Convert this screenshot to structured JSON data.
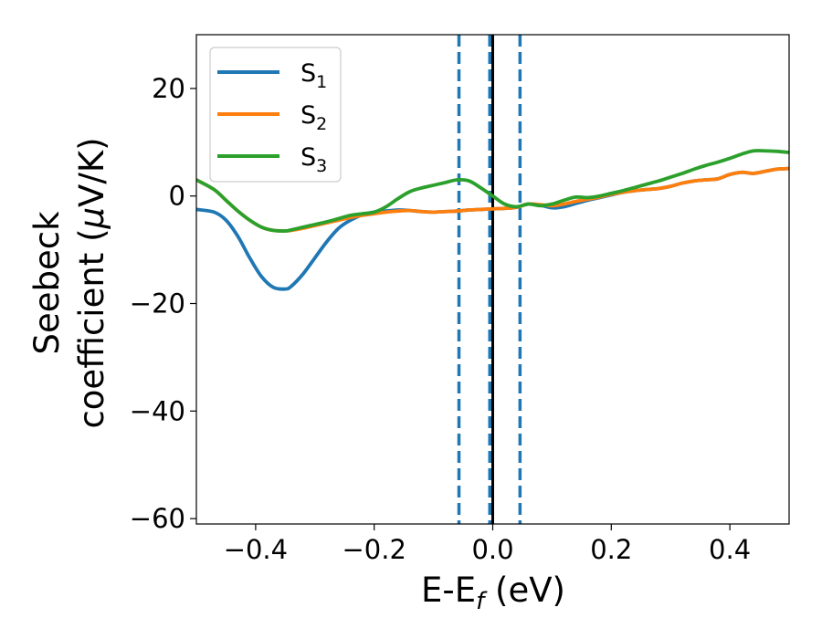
{
  "chart_data": {
    "type": "line",
    "title": "",
    "xlabel": {
      "base": "E-E",
      "sub": "f",
      "suffix": " (eV)"
    },
    "ylabel": {
      "line1": "Seebeck",
      "line2_prefix": "coefficient  (",
      "line2_mu": "μ",
      "line2_suffix": "V/K)"
    },
    "xlim": [
      -0.5,
      0.5
    ],
    "ylim": [
      -61,
      30
    ],
    "xticks": [
      -0.4,
      -0.2,
      0.0,
      0.2,
      0.4
    ],
    "xtick_labels": [
      "−0.4",
      "−0.2",
      "0.0",
      "0.2",
      "0.4"
    ],
    "yticks": [
      -60,
      -40,
      -20,
      0,
      20
    ],
    "ytick_labels": [
      "−60",
      "−40",
      "−20",
      "0",
      "20"
    ],
    "legend_position": "top-left",
    "series": [
      {
        "name": "S",
        "sub": "1",
        "color": "#1f77b4",
        "x": [
          -0.5,
          -0.47,
          -0.45,
          -0.43,
          -0.41,
          -0.39,
          -0.37,
          -0.35,
          -0.34,
          -0.32,
          -0.3,
          -0.28,
          -0.26,
          -0.24,
          -0.22,
          -0.2,
          -0.18,
          -0.16,
          -0.14,
          -0.12,
          -0.1,
          -0.08,
          -0.06,
          -0.04,
          -0.02,
          0.0,
          0.02,
          0.04,
          0.06,
          0.08,
          0.1,
          0.12,
          0.14,
          0.16,
          0.18,
          0.2,
          0.22,
          0.24,
          0.26,
          0.28,
          0.3,
          0.32,
          0.34,
          0.36,
          0.38,
          0.4,
          0.42,
          0.44,
          0.46,
          0.48,
          0.5
        ],
        "y": [
          -2.5,
          -3.0,
          -4.5,
          -7.5,
          -11.5,
          -15.0,
          -17.0,
          -17.3,
          -16.8,
          -14.5,
          -11.5,
          -8.5,
          -6.0,
          -4.5,
          -3.5,
          -3.0,
          -2.8,
          -2.6,
          -2.7,
          -2.9,
          -3.0,
          -2.9,
          -2.8,
          -2.6,
          -2.5,
          -2.4,
          -2.3,
          -2.1,
          -1.5,
          -1.7,
          -2.2,
          -2.0,
          -1.4,
          -0.8,
          -0.3,
          0.2,
          0.7,
          1.0,
          1.2,
          1.4,
          1.8,
          2.4,
          2.8,
          3.0,
          3.2,
          4.0,
          4.4,
          4.2,
          4.6,
          5.0,
          5.1
        ]
      },
      {
        "name": "S",
        "sub": "2",
        "color": "#ff7f0e",
        "x": [
          -0.5,
          -0.47,
          -0.45,
          -0.43,
          -0.41,
          -0.39,
          -0.37,
          -0.35,
          -0.34,
          -0.32,
          -0.3,
          -0.28,
          -0.26,
          -0.24,
          -0.22,
          -0.2,
          -0.18,
          -0.16,
          -0.14,
          -0.12,
          -0.1,
          -0.08,
          -0.06,
          -0.04,
          -0.02,
          0.0,
          0.02,
          0.04,
          0.06,
          0.08,
          0.1,
          0.12,
          0.14,
          0.16,
          0.18,
          0.2,
          0.22,
          0.24,
          0.26,
          0.28,
          0.3,
          0.32,
          0.34,
          0.36,
          0.38,
          0.4,
          0.42,
          0.44,
          0.46,
          0.48,
          0.5
        ],
        "y": [
          3.0,
          1.2,
          -0.8,
          -2.8,
          -4.5,
          -5.8,
          -6.4,
          -6.5,
          -6.4,
          -6.0,
          -5.5,
          -5.0,
          -4.5,
          -4.0,
          -3.6,
          -3.3,
          -3.0,
          -2.8,
          -2.7,
          -2.9,
          -3.0,
          -2.9,
          -2.8,
          -2.6,
          -2.5,
          -2.4,
          -2.3,
          -2.1,
          -1.5,
          -1.6,
          -1.8,
          -1.5,
          -1.0,
          -0.6,
          -0.2,
          0.3,
          0.7,
          1.0,
          1.2,
          1.4,
          1.8,
          2.4,
          2.8,
          3.0,
          3.2,
          4.0,
          4.4,
          4.2,
          4.6,
          5.0,
          5.1
        ]
      },
      {
        "name": "S",
        "sub": "3",
        "color": "#2ca02c",
        "x": [
          -0.5,
          -0.47,
          -0.45,
          -0.43,
          -0.41,
          -0.39,
          -0.37,
          -0.35,
          -0.34,
          -0.32,
          -0.3,
          -0.28,
          -0.26,
          -0.24,
          -0.22,
          -0.2,
          -0.18,
          -0.16,
          -0.14,
          -0.12,
          -0.1,
          -0.08,
          -0.06,
          -0.04,
          -0.02,
          0.0,
          0.02,
          0.04,
          0.06,
          0.08,
          0.1,
          0.12,
          0.14,
          0.16,
          0.18,
          0.2,
          0.22,
          0.24,
          0.26,
          0.28,
          0.3,
          0.32,
          0.34,
          0.36,
          0.38,
          0.4,
          0.42,
          0.44,
          0.46,
          0.48,
          0.5
        ],
        "y": [
          3.0,
          1.2,
          -0.8,
          -2.8,
          -4.5,
          -5.8,
          -6.4,
          -6.5,
          -6.3,
          -5.8,
          -5.3,
          -4.8,
          -4.2,
          -3.6,
          -3.3,
          -3.0,
          -2.0,
          -0.5,
          0.8,
          1.5,
          2.0,
          2.5,
          3.0,
          2.8,
          1.5,
          0.0,
          -1.5,
          -2.0,
          -1.5,
          -1.8,
          -1.5,
          -0.8,
          -0.2,
          -0.3,
          0.0,
          0.5,
          1.0,
          1.6,
          2.2,
          2.8,
          3.5,
          4.2,
          5.0,
          5.7,
          6.3,
          7.0,
          7.8,
          8.4,
          8.4,
          8.3,
          8.1
        ]
      }
    ],
    "vlines": [
      {
        "x": -0.057,
        "style": "dashed",
        "color": "#1f77b4"
      },
      {
        "x": -0.005,
        "style": "dashed",
        "color": "#1f77b4"
      },
      {
        "x": 0.046,
        "style": "dashed",
        "color": "#1f77b4"
      },
      {
        "x": 0.0,
        "style": "solid",
        "color": "#000000"
      }
    ]
  }
}
